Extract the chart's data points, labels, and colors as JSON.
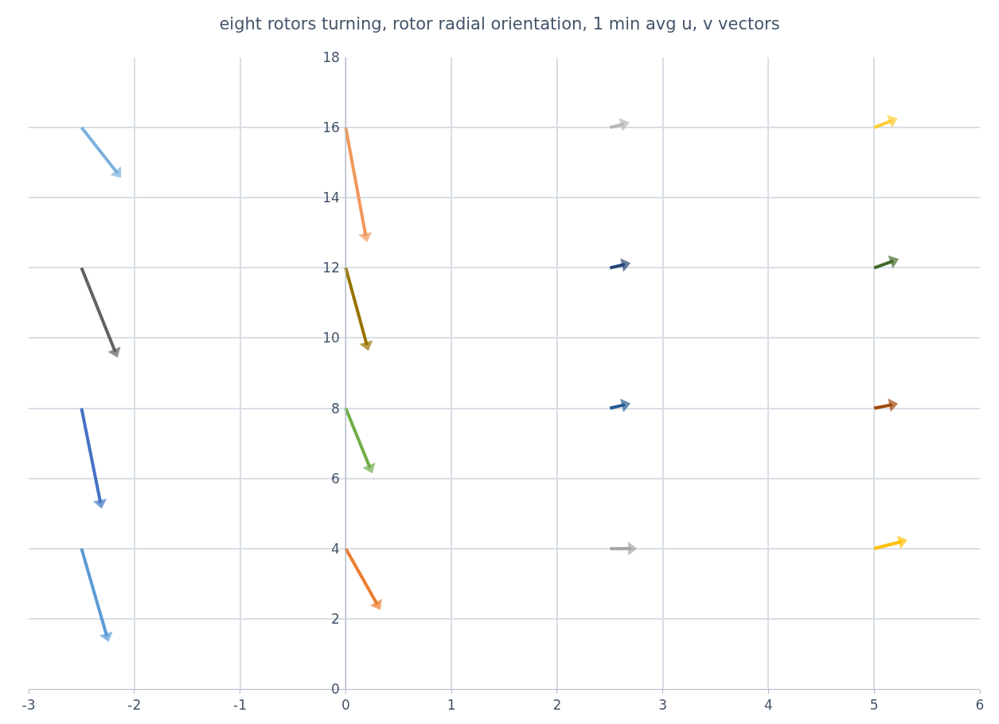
{
  "chart_data": {
    "type": "line",
    "title": "eight rotors turning, rotor radial orientation, 1 min avg u, v vectors",
    "xlim": [
      -3,
      6
    ],
    "xticks": [
      -3,
      -2,
      -1,
      0,
      1,
      2,
      3,
      4,
      5,
      6
    ],
    "ylim": [
      0,
      18
    ],
    "yticks": [
      0,
      2,
      4,
      6,
      8,
      10,
      12,
      14,
      16,
      18
    ],
    "grid": true,
    "marker": "triangle",
    "line_style": "solid",
    "series": [
      {
        "color": "#7cafdd",
        "x": [
          -2.5,
          -2.16
        ],
        "values": [
          16,
          14.7
        ]
      },
      {
        "color": "#636363",
        "x": [
          -2.5,
          -2.18
        ],
        "values": [
          12,
          9.6
        ]
      },
      {
        "color": "#4472c4",
        "x": [
          -2.5,
          -2.32
        ],
        "values": [
          8,
          5.3
        ]
      },
      {
        "color": "#5b9bd5",
        "x": [
          -2.5,
          -2.26
        ],
        "values": [
          4,
          1.5
        ]
      },
      {
        "color": "#f1975a",
        "x": [
          0,
          0.19
        ],
        "values": [
          16,
          12.9
        ]
      },
      {
        "color": "#997300",
        "x": [
          0,
          0.2
        ],
        "values": [
          12,
          9.8
        ]
      },
      {
        "color": "#70ad47",
        "x": [
          0,
          0.23
        ],
        "values": [
          8,
          6.3
        ]
      },
      {
        "color": "#ed7d31",
        "x": [
          0,
          0.3
        ],
        "values": [
          4,
          2.4
        ]
      },
      {
        "color": "#b7b7b7",
        "x": [
          2.5,
          2.63
        ],
        "values": [
          16,
          16.1
        ]
      },
      {
        "color": "#264478",
        "x": [
          2.5,
          2.64
        ],
        "values": [
          12,
          12.1
        ]
      },
      {
        "color": "#255e91",
        "x": [
          2.5,
          2.64
        ],
        "values": [
          8,
          8.1
        ]
      },
      {
        "color": "#a5a5a5",
        "x": [
          2.5,
          2.7
        ],
        "values": [
          4,
          4.0
        ]
      },
      {
        "color": "#ffcd33",
        "x": [
          5,
          5.17
        ],
        "values": [
          16,
          16.2
        ]
      },
      {
        "color": "#43682b",
        "x": [
          5,
          5.18
        ],
        "values": [
          12,
          12.2
        ]
      },
      {
        "color": "#9e480e",
        "x": [
          5,
          5.17
        ],
        "values": [
          8,
          8.1
        ]
      },
      {
        "color": "#ffc000",
        "x": [
          5,
          5.26
        ],
        "values": [
          4,
          4.2
        ]
      }
    ]
  }
}
